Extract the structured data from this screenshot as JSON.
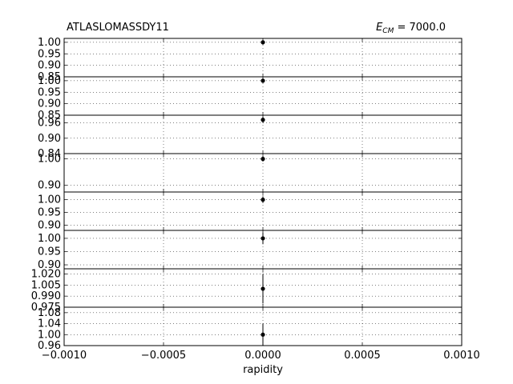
{
  "chart_data": {
    "type": "scatter",
    "title_left": "ATLASLOMASSDY11",
    "title_right_symbol": "E",
    "title_right_subscript": "CM",
    "title_right_value": " = 7000.0",
    "xlabel": "rapidity",
    "xlim": [
      -0.001,
      0.001
    ],
    "x_ticks": [
      -0.001,
      -0.0005,
      0.0,
      0.0005,
      0.001
    ],
    "x_tick_labels": [
      "−0.0010",
      "−0.0005",
      "0.0000",
      "0.0005",
      "0.0010"
    ],
    "grid": true,
    "panels": [
      {
        "ylim": [
          0.85,
          1.017
        ],
        "yticks": [
          1.0,
          0.95,
          0.9,
          0.85
        ],
        "ytick_labels": [
          "1.00",
          "0.95",
          "0.90",
          "0.85"
        ],
        "point": {
          "x": 0.0,
          "y": 1.0,
          "err": 0.01
        }
      },
      {
        "ylim": [
          0.85,
          1.017
        ],
        "yticks": [
          1.0,
          0.95,
          0.9,
          0.85
        ],
        "ytick_labels": [
          "1.00",
          "0.95",
          "0.90",
          "0.85"
        ],
        "point": {
          "x": 0.0,
          "y": 1.0,
          "err": 0.01
        }
      },
      {
        "ylim": [
          0.84,
          0.99
        ],
        "yticks": [
          0.96,
          0.9,
          0.84
        ],
        "ytick_labels": [
          "0.96",
          "0.90",
          "0.84"
        ],
        "point": {
          "x": 0.0,
          "y": 0.972,
          "err": 0.012
        }
      },
      {
        "ylim": [
          0.875,
          1.02
        ],
        "yticks": [
          1.0,
          0.9
        ],
        "ytick_labels": [
          "1.00",
          "0.90"
        ],
        "point": {
          "x": 0.0,
          "y": 1.0,
          "err": 0.01
        }
      },
      {
        "ylim": [
          0.88,
          1.03
        ],
        "yticks": [
          1.0,
          0.95,
          0.9
        ],
        "ytick_labels": [
          "1.00",
          "0.95",
          "0.90"
        ],
        "point": {
          "x": 0.0,
          "y": 1.0,
          "err": 0.013
        }
      },
      {
        "ylim": [
          0.885,
          1.03
        ],
        "yticks": [
          1.0,
          0.95,
          0.9
        ],
        "ytick_labels": [
          "1.00",
          "0.95",
          "0.90"
        ],
        "point": {
          "x": 0.0,
          "y": 1.0,
          "err": 0.022
        }
      },
      {
        "ylim": [
          0.975,
          1.027
        ],
        "yticks": [
          1.02,
          1.005,
          0.99,
          0.975
        ],
        "ytick_labels": [
          "1.020",
          "1.005",
          "0.990",
          "0.975"
        ],
        "point": {
          "x": 0.0,
          "y": 1.0,
          "err": 0.02
        }
      },
      {
        "ylim": [
          0.96,
          1.1
        ],
        "yticks": [
          1.08,
          1.04,
          1.0,
          0.96
        ],
        "ytick_labels": [
          "1.08",
          "1.04",
          "1.00",
          "0.96"
        ],
        "point": {
          "x": 0.0,
          "y": 1.0,
          "err": 0.04
        }
      }
    ]
  }
}
